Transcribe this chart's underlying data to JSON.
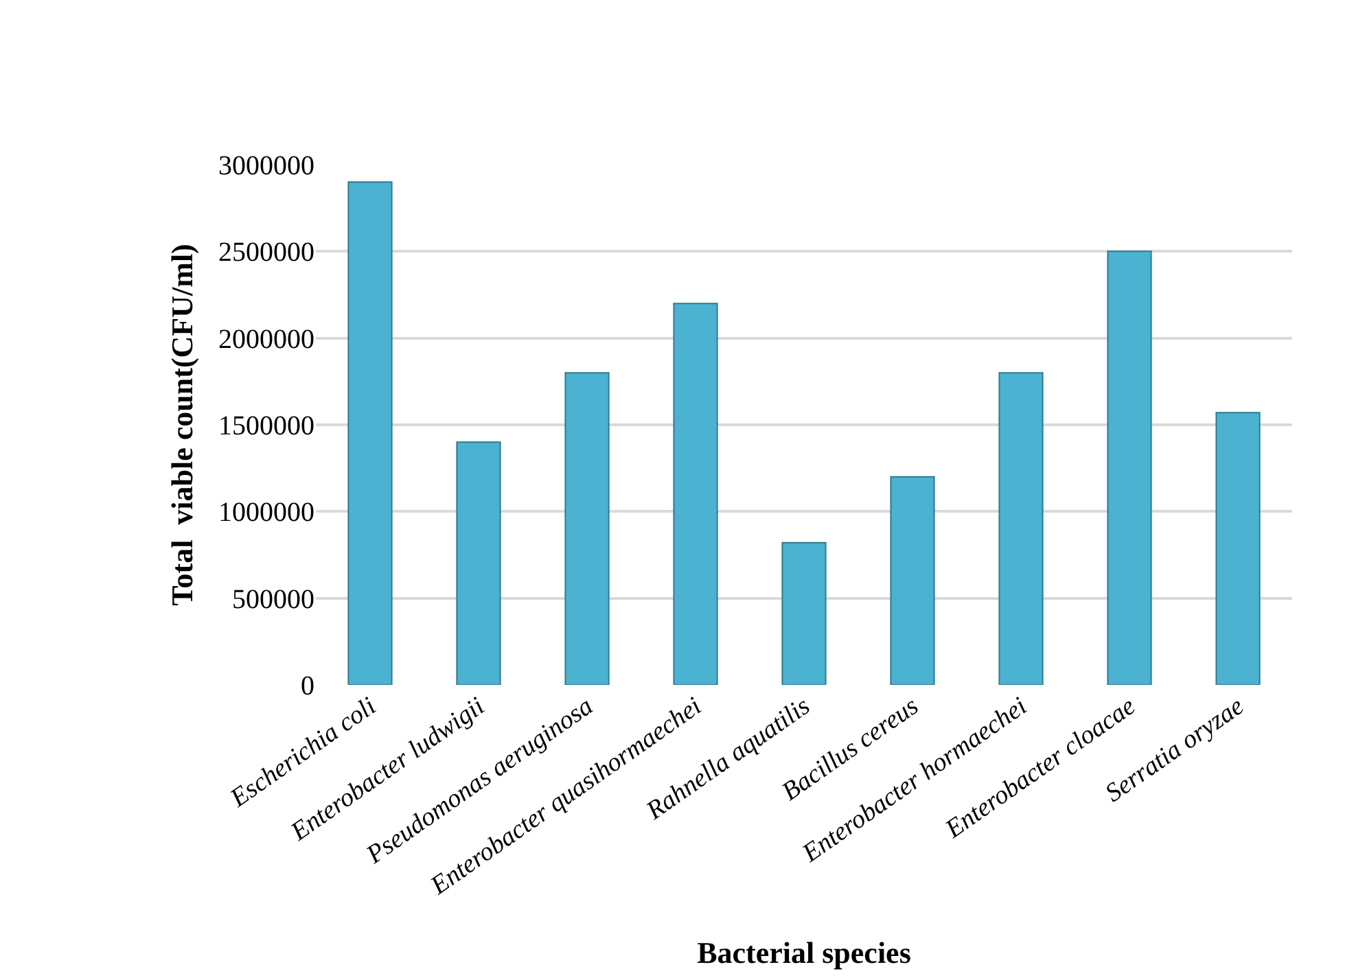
{
  "chart_data": {
    "type": "bar",
    "xlabel": "Bacterial species",
    "ylabel": "Total  viable count(CFU/ml)",
    "categories": [
      "Escherichia coli",
      "Enterobacter ludwigii",
      "Pseudomonas aeruginosa",
      "Enterobacter quasihormaechei",
      "Rahnella aquatilis",
      "Bacillus cereus",
      "Enterobacter hormaechei",
      "Enterobacter cloacae",
      "Serratia oryzae"
    ],
    "values": [
      2900000,
      1400000,
      1800000,
      2200000,
      820000,
      1200000,
      1800000,
      2500000,
      1570000
    ],
    "color": "#4bb3d1",
    "ylim": [
      0,
      3000000
    ],
    "yticks": [
      0,
      500000,
      1000000,
      1500000,
      2000000,
      2500000,
      3000000
    ],
    "grid": "y",
    "legend": false
  }
}
